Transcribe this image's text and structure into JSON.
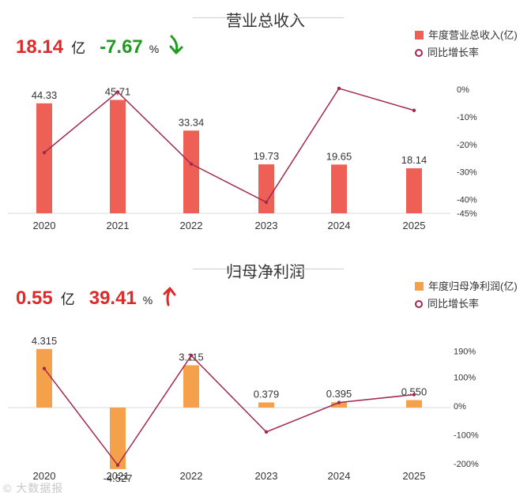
{
  "chart_data": [
    {
      "type": "bar",
      "title": "营业总收入",
      "headline": {
        "value": "18.14",
        "unit": "亿",
        "change": "-7.67",
        "change_unit": "%",
        "direction": "down"
      },
      "categories": [
        "2020",
        "2021",
        "2022",
        "2023",
        "2024",
        "2025"
      ],
      "series": [
        {
          "name": "年度营业总收入(亿)",
          "type": "bar",
          "values": [
            44.33,
            45.71,
            33.34,
            19.73,
            19.65,
            18.14
          ],
          "labels": [
            "44.33",
            "45.71",
            "33.34",
            "19.73",
            "19.65",
            "18.14"
          ],
          "color": "#ee6055"
        },
        {
          "name": "同比增长率",
          "type": "line",
          "values": [
            -23.0,
            -1.0,
            -27.1,
            -41.0,
            0.3,
            -7.67
          ],
          "color": "#a3284f",
          "axis": "right"
        }
      ],
      "ylim_left": [
        0,
        50
      ],
      "ylim_right": [
        -45,
        0
      ],
      "right_ticks": [
        "0%",
        "-10%",
        "-20%",
        "-30%",
        "-40%",
        "-45%"
      ],
      "right_tick_values": [
        0,
        -10,
        -20,
        -30,
        -40,
        -45
      ],
      "legend_position": "top-right",
      "grid": false
    },
    {
      "type": "bar",
      "title": "归母净利润",
      "headline": {
        "value": "0.55",
        "unit": "亿",
        "change": "39.41",
        "change_unit": "%",
        "direction": "up"
      },
      "categories": [
        "2020",
        "2021",
        "2022",
        "2023",
        "2024",
        "2025"
      ],
      "series": [
        {
          "name": "年度归母净利润(亿)",
          "type": "bar",
          "values": [
            4.315,
            -4.527,
            3.115,
            0.379,
            0.395,
            0.55
          ],
          "labels": [
            "4.315",
            "-4.527",
            "3.115",
            "0.379",
            "0.395",
            "0.550"
          ],
          "color": "#f5a04a"
        },
        {
          "name": "同比增长率",
          "type": "line",
          "values": [
            130,
            -205,
            175,
            -90,
            12,
            39.41
          ],
          "color": "#a3284f",
          "axis": "right"
        }
      ],
      "ylim_left": [
        -5,
        5
      ],
      "ylim_right": [
        -230,
        230
      ],
      "right_ticks": [
        "190%",
        "100%",
        "0%",
        "-100%",
        "-200%"
      ],
      "right_tick_values": [
        190,
        100,
        0,
        -100,
        -200
      ],
      "legend_position": "top-right",
      "grid": false
    }
  ],
  "watermark": "© 大数据报"
}
